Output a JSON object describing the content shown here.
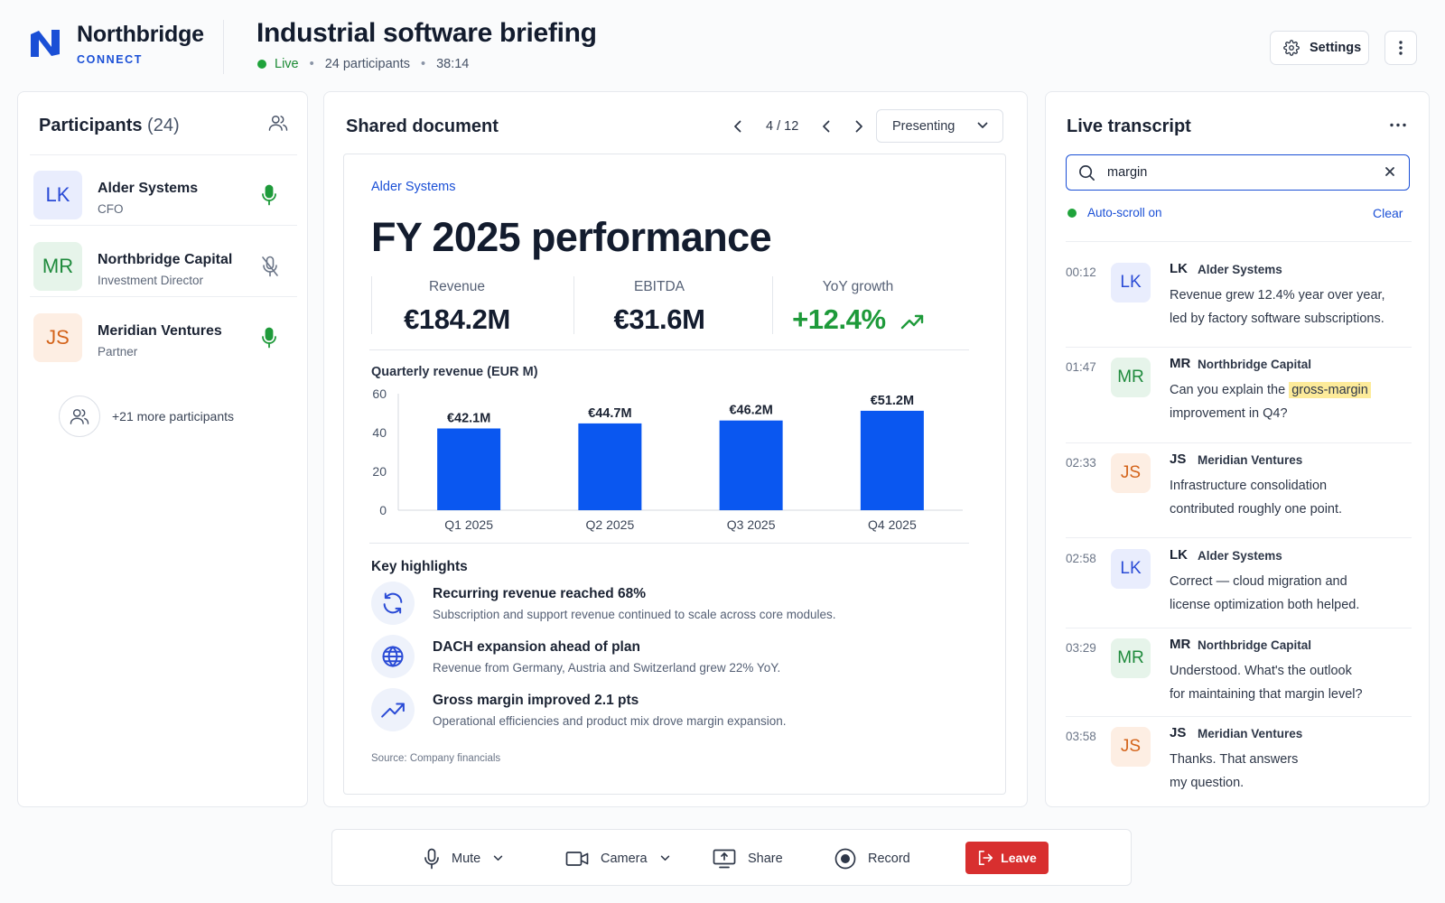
{
  "brand": {
    "name": "Northbridge",
    "sub": "CONNECT"
  },
  "meeting": {
    "title": "Industrial software briefing",
    "status": "Live",
    "participants_text": "24 participants",
    "elapsed": "38:14",
    "separator": "•"
  },
  "header": {
    "settings_label": "Settings"
  },
  "participants": {
    "title": "Participants",
    "count": "(24)",
    "items": [
      {
        "initials": "LK",
        "name": "Alder Systems",
        "role": "CFO",
        "mic": "on",
        "color": "#2a4bd6"
      },
      {
        "initials": "MR",
        "name": "Northbridge Capital",
        "role": "Investment Director",
        "mic": "muted",
        "color": "#1e8a3c"
      },
      {
        "initials": "JS",
        "name": "Meridian Ventures",
        "role": "Partner",
        "mic": "on",
        "color": "#d4641b"
      }
    ],
    "more": "+21 more participants"
  },
  "document": {
    "title": "Shared document",
    "pager": "4 / 12",
    "presenting": "Presenting",
    "company": "Alder Systems",
    "heading": "FY 2025 performance",
    "kpis": [
      {
        "label": "Revenue",
        "value": "€184.2M"
      },
      {
        "label": "EBITDA",
        "value": "€31.6M"
      },
      {
        "label": "YoY growth",
        "value": "+12.4%"
      }
    ],
    "chart_title": "Quarterly revenue (EUR M)",
    "highlights_title": "Key highlights",
    "highlights": [
      {
        "icon": "refresh-icon",
        "title": "Recurring revenue reached 68%",
        "desc": "Subscription and support revenue continued to scale across core modules."
      },
      {
        "icon": "globe-icon",
        "title": "DACH expansion ahead of plan",
        "desc": "Revenue from Germany, Austria and Switzerland grew 22% YoY."
      },
      {
        "icon": "trend-up-icon",
        "title": "Gross margin improved 2.1 pts",
        "desc": "Operational efficiencies and product mix drove margin expansion."
      }
    ],
    "source": "Source: Company financials"
  },
  "chart_data": {
    "type": "bar",
    "title": "Quarterly revenue (EUR M)",
    "categories": [
      "Q1 2025",
      "Q2 2025",
      "Q3 2025",
      "Q4 2025"
    ],
    "values": [
      42.1,
      44.7,
      46.2,
      51.2
    ],
    "data_labels": [
      "€42.1M",
      "€44.7M",
      "€46.2M",
      "€51.2M"
    ],
    "ylim": [
      0,
      60
    ],
    "yticks": [
      0,
      20,
      40,
      60
    ],
    "color": "#0a57f0",
    "grid": false
  },
  "transcript": {
    "title": "Live transcript",
    "search_value": "margin",
    "autoscroll": "Auto-scroll on",
    "clear": "Clear",
    "entries": [
      {
        "time": "00:12",
        "initials": "LK",
        "speaker": "Alder Systems",
        "text": [
          "Revenue grew 12.4% year over year,",
          "led by factory software subscriptions."
        ]
      },
      {
        "time": "01:47",
        "initials": "MR",
        "speaker": "Northbridge Capital",
        "text_before": "Can you explain the ",
        "highlight": "gross-margin",
        "text_after": "improvement in Q4?"
      },
      {
        "time": "02:33",
        "initials": "JS",
        "speaker": "Meridian Ventures",
        "text": [
          "Infrastructure consolidation",
          "contributed roughly one point."
        ]
      },
      {
        "time": "02:58",
        "initials": "LK",
        "speaker": "Alder Systems",
        "text": [
          "Correct — cloud migration and",
          "license optimization both helped."
        ]
      },
      {
        "time": "03:29",
        "initials": "MR",
        "speaker": "Northbridge Capital",
        "text": [
          "Understood. What's the outlook",
          "for maintaining that margin level?"
        ]
      },
      {
        "time": "03:58",
        "initials": "JS",
        "speaker": "Meridian Ventures",
        "text": [
          "Thanks. That answers",
          "my question."
        ]
      }
    ]
  },
  "controls": {
    "mute": "Mute",
    "camera": "Camera",
    "share": "Share",
    "record": "Record",
    "leave": "Leave"
  },
  "colors": {
    "accent": "#1a4fd6",
    "live": "#1fa33b",
    "leave": "#d82f2f",
    "highlight": "#fdeb9a"
  }
}
